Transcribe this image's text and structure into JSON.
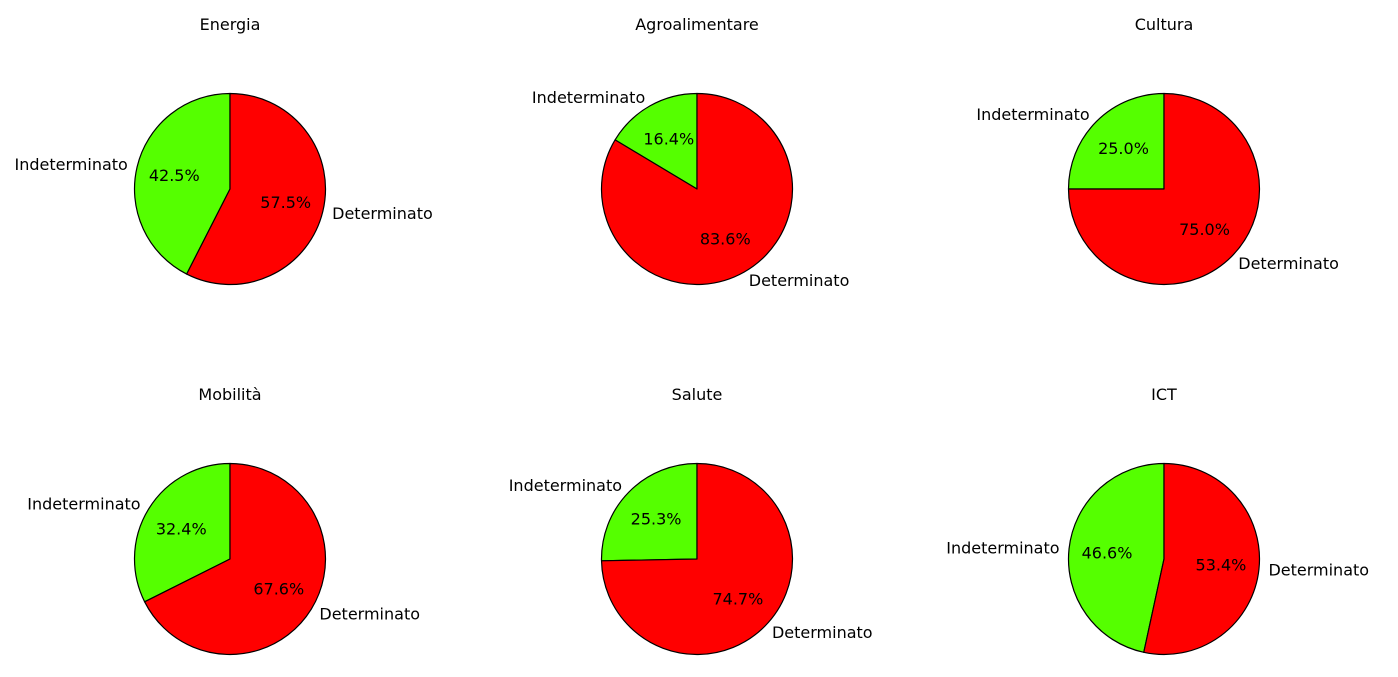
{
  "colors": {
    "Indeterminato": "#55ff00",
    "Determinato": "#ff0000",
    "edge": "#000000"
  },
  "chart_data": [
    {
      "type": "pie",
      "title": "Energia",
      "labels": [
        "Indeterminato",
        "Determinato"
      ],
      "values": [
        42.5,
        57.5
      ],
      "pct_labels": [
        "42.5%",
        "57.5%"
      ]
    },
    {
      "type": "pie",
      "title": "Agroalimentare",
      "labels": [
        "Indeterminato",
        "Determinato"
      ],
      "values": [
        16.4,
        83.6
      ],
      "pct_labels": [
        "16.4%",
        "83.6%"
      ]
    },
    {
      "type": "pie",
      "title": "Cultura",
      "labels": [
        "Indeterminato",
        "Determinato"
      ],
      "values": [
        25.0,
        75.0
      ],
      "pct_labels": [
        "25.0%",
        "75.0%"
      ]
    },
    {
      "type": "pie",
      "title": "Mobilità",
      "labels": [
        "Indeterminato",
        "Determinato"
      ],
      "values": [
        32.4,
        67.6
      ],
      "pct_labels": [
        "32.4%",
        "67.6%"
      ]
    },
    {
      "type": "pie",
      "title": "Salute",
      "labels": [
        "Indeterminato",
        "Determinato"
      ],
      "values": [
        25.3,
        74.7
      ],
      "pct_labels": [
        "25.3%",
        "74.7%"
      ]
    },
    {
      "type": "pie",
      "title": "ICT",
      "labels": [
        "Indeterminato",
        "Determinato"
      ],
      "values": [
        46.6,
        53.4
      ],
      "pct_labels": [
        "46.6%",
        "53.4%"
      ]
    }
  ]
}
